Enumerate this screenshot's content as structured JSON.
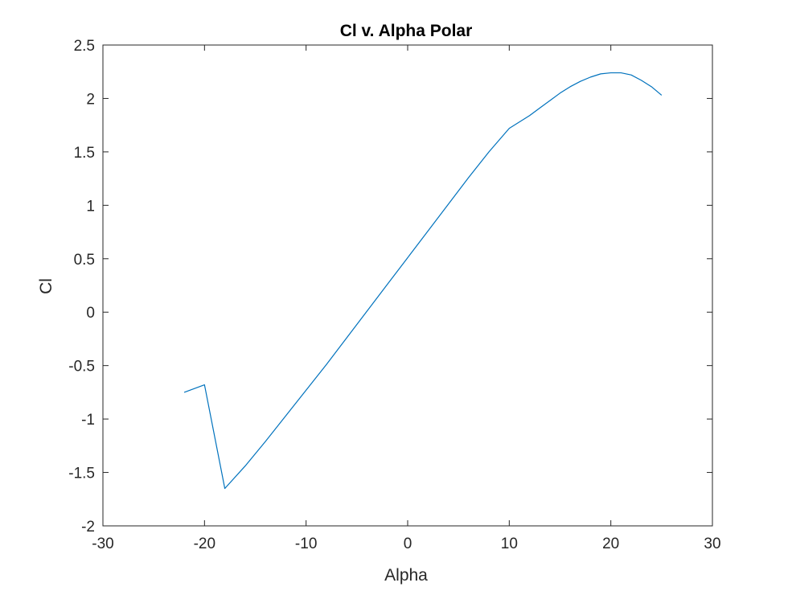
{
  "chart_data": {
    "type": "line",
    "title": "Cl v. Alpha Polar",
    "xlabel": "Alpha",
    "ylabel": "Cl",
    "xlim": [
      -30,
      30
    ],
    "ylim": [
      -2,
      2.5
    ],
    "xticks": [
      "-30",
      "-20",
      "-10",
      "0",
      "10",
      "20",
      "30"
    ],
    "yticks": [
      "-2",
      "-1.5",
      "-1",
      "-0.5",
      "0",
      "0.5",
      "1",
      "1.5",
      "2",
      "2.5"
    ],
    "grid": false,
    "series": [
      {
        "color": "#0072BD",
        "x": [
          -22,
          -20,
          -18,
          -16,
          -14,
          -12,
          -10,
          -8,
          -6,
          -4,
          -2,
          0,
          2,
          4,
          6,
          8,
          10,
          12,
          13,
          14,
          15,
          16,
          17,
          18,
          19,
          20,
          21,
          22,
          23,
          24,
          25
        ],
        "y": [
          -0.75,
          -0.68,
          -1.65,
          -1.44,
          -1.21,
          -0.97,
          -0.73,
          -0.49,
          -0.24,
          0.01,
          0.26,
          0.51,
          0.76,
          1.01,
          1.26,
          1.5,
          1.72,
          1.84,
          1.91,
          1.98,
          2.05,
          2.11,
          2.16,
          2.2,
          2.23,
          2.24,
          2.24,
          2.22,
          2.17,
          2.11,
          2.03
        ]
      }
    ]
  }
}
